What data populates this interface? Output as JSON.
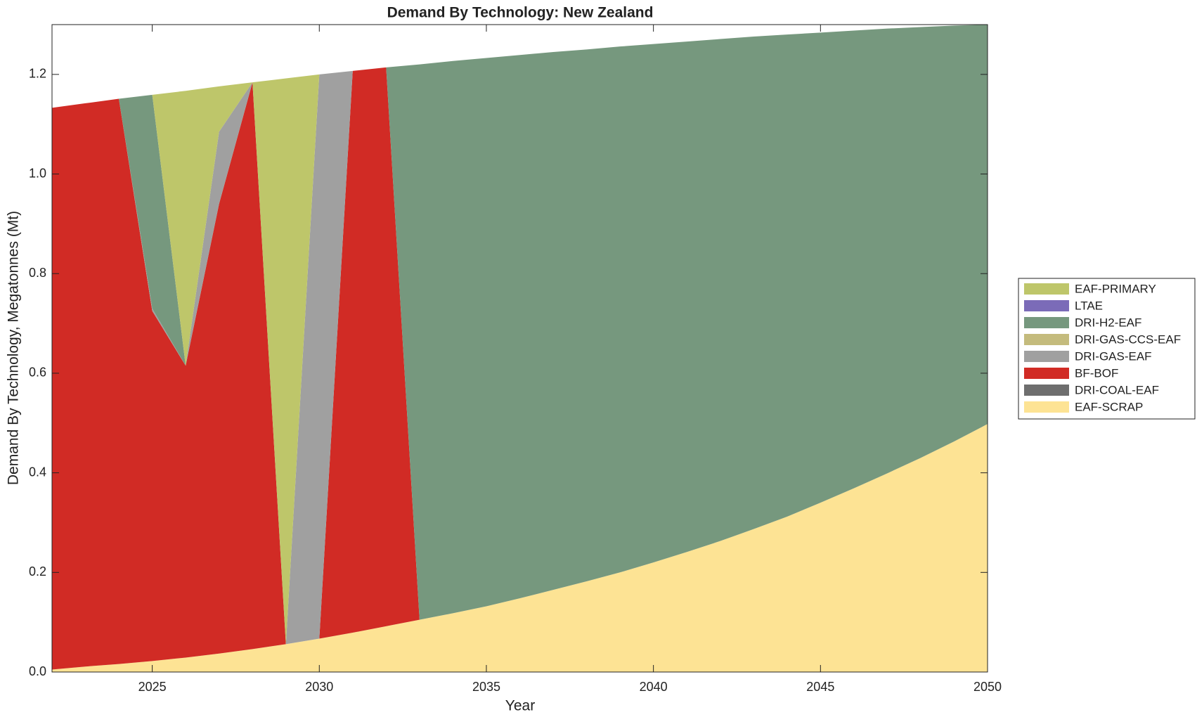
{
  "chart_data": {
    "type": "stacked-area",
    "title": "Demand By Technology: New Zealand",
    "x_label": "Year",
    "y_label": "Demand By Technology, Megatonnes (Mt)",
    "x": [
      2022,
      2023,
      2024,
      2025,
      2026,
      2027,
      2028,
      2029,
      2030,
      2031,
      2032,
      2033,
      2034,
      2035,
      2036,
      2037,
      2038,
      2039,
      2040,
      2041,
      2042,
      2043,
      2044,
      2045,
      2046,
      2047,
      2048,
      2049,
      2050
    ],
    "xlim": [
      2022,
      2050
    ],
    "xticks": [
      2025,
      2030,
      2035,
      2040,
      2045,
      2050
    ],
    "ylim": [
      0,
      1.3
    ],
    "yticks": [
      {
        "value": 0,
        "label": "0.0"
      },
      0.2,
      0.4,
      0.6,
      0.8,
      {
        "value": 1,
        "label": "1.0"
      },
      1.2
    ],
    "legend": "right",
    "series": [
      {
        "name": "EAF-SCRAP",
        "color": "#fde394",
        "values": [
          0.005,
          0.011,
          0.016,
          0.022,
          0.029,
          0.037,
          0.046,
          0.056,
          0.067,
          0.079,
          0.092,
          0.105,
          0.118,
          0.132,
          0.148,
          0.165,
          0.182,
          0.2,
          0.22,
          0.241,
          0.263,
          0.287,
          0.312,
          0.34,
          0.369,
          0.399,
          0.43,
          0.463,
          0.498
        ]
      },
      {
        "name": "DRI-COAL-EAF",
        "color": "#6e6e6e",
        "values": [
          0,
          0,
          0,
          0,
          0,
          0,
          0,
          0,
          0,
          0,
          0,
          0,
          0,
          0,
          0,
          0,
          0,
          0,
          0,
          0,
          0,
          0,
          0,
          0,
          0,
          0,
          0,
          0,
          0
        ]
      },
      {
        "name": "BF-BOF",
        "color": "#d12b25",
        "values": [
          1.128,
          1.131,
          1.135,
          0.703,
          0.586,
          0.903,
          1.138,
          0,
          0,
          1.128,
          1.122,
          0,
          0,
          0,
          0,
          0,
          0,
          0,
          0,
          0,
          0,
          0,
          0,
          0,
          0,
          0,
          0,
          0,
          0
        ]
      },
      {
        "name": "DRI-GAS-EAF",
        "color": "#a0a0a0",
        "values": [
          0,
          0,
          0,
          0.005,
          0,
          0.145,
          0,
          0,
          1.133,
          0,
          0,
          0,
          0,
          0,
          0,
          0,
          0,
          0,
          0,
          0,
          0,
          0,
          0,
          0,
          0,
          0,
          0,
          0,
          0
        ]
      },
      {
        "name": "DRI-GAS-CCS-EAF",
        "color": "#c4bb7d",
        "values": [
          0,
          0,
          0,
          0,
          0,
          0,
          0,
          0,
          0,
          0,
          0,
          0,
          0,
          0,
          0,
          0,
          0,
          0,
          0,
          0,
          0,
          0,
          0,
          0,
          0,
          0,
          0,
          0,
          0
        ]
      },
      {
        "name": "DRI-H2-EAF",
        "color": "#76987e",
        "values": [
          0,
          0,
          0,
          0.429,
          0,
          0,
          0,
          0,
          0,
          0,
          0,
          1.115,
          1.109,
          1.101,
          1.091,
          1.08,
          1.068,
          1.056,
          1.041,
          1.025,
          1.008,
          0.989,
          0.968,
          0.944,
          0.919,
          0.893,
          0.865,
          0.835,
          0.802
        ]
      },
      {
        "name": "LTAE",
        "color": "#7b6bb8",
        "values": [
          0,
          0,
          0,
          0,
          0,
          0,
          0,
          0,
          0,
          0,
          0,
          0,
          0,
          0,
          0,
          0,
          0,
          0,
          0,
          0,
          0,
          0,
          0,
          0,
          0,
          0,
          0,
          0,
          0
        ]
      },
      {
        "name": "EAF-PRIMARY",
        "color": "#bec66a",
        "values": [
          0,
          0,
          0,
          0,
          0.552,
          0.091,
          0,
          1.136,
          0,
          0,
          0,
          0,
          0,
          0,
          0,
          0,
          0,
          0,
          0,
          0,
          0,
          0,
          0,
          0,
          0,
          0,
          0,
          0,
          0
        ]
      }
    ]
  }
}
